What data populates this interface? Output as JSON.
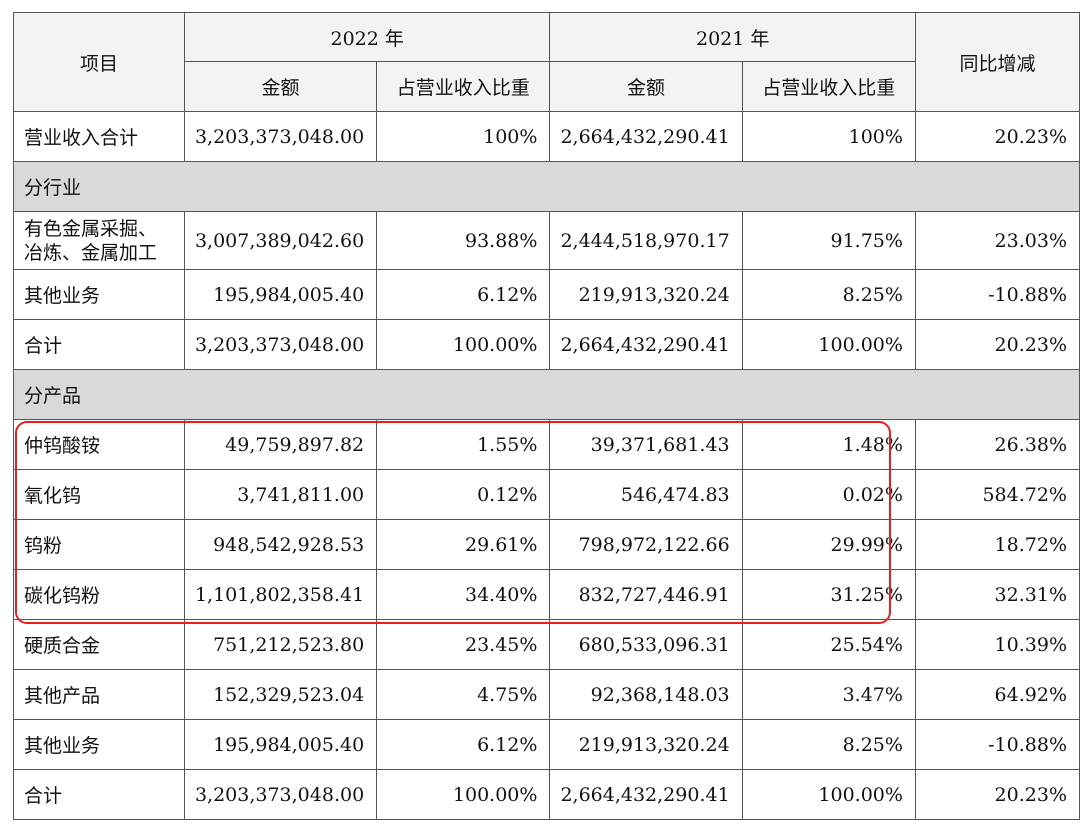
{
  "header": {
    "item": "项目",
    "year_2022": "2022 年",
    "year_2021": "2021 年",
    "yoy": "同比增减",
    "amount": "金额",
    "share": "占营业收入比重"
  },
  "total_row": {
    "label": "营业收入合计",
    "amt22": "3,203,373,048.00",
    "pct22": "100%",
    "amt21": "2,664,432,290.41",
    "pct21": "100%",
    "yoy": "20.23%"
  },
  "section_industry": "分行业",
  "industry_rows": [
    {
      "label": "有色金属采掘、冶炼、金属加工",
      "amt22": "3,007,389,042.60",
      "pct22": "93.88%",
      "amt21": "2,444,518,970.17",
      "pct21": "91.75%",
      "yoy": "23.03%"
    },
    {
      "label": "其他业务",
      "amt22": "195,984,005.40",
      "pct22": "6.12%",
      "amt21": "219,913,320.24",
      "pct21": "8.25%",
      "yoy": "-10.88%"
    },
    {
      "label": "合计",
      "amt22": "3,203,373,048.00",
      "pct22": "100.00%",
      "amt21": "2,664,432,290.41",
      "pct21": "100.00%",
      "yoy": "20.23%"
    }
  ],
  "section_product": "分产品",
  "product_rows": [
    {
      "label": "仲钨酸铵",
      "amt22": "49,759,897.82",
      "pct22": "1.55%",
      "amt21": "39,371,681.43",
      "pct21": "1.48%",
      "yoy": "26.38%"
    },
    {
      "label": "氧化钨",
      "amt22": "3,741,811.00",
      "pct22": "0.12%",
      "amt21": "546,474.83",
      "pct21": "0.02%",
      "yoy": "584.72%"
    },
    {
      "label": "钨粉",
      "amt22": "948,542,928.53",
      "pct22": "29.61%",
      "amt21": "798,972,122.66",
      "pct21": "29.99%",
      "yoy": "18.72%"
    },
    {
      "label": "碳化钨粉",
      "amt22": "1,101,802,358.41",
      "pct22": "34.40%",
      "amt21": "832,727,446.91",
      "pct21": "31.25%",
      "yoy": "32.31%"
    },
    {
      "label": "硬质合金",
      "amt22": "751,212,523.80",
      "pct22": "23.45%",
      "amt21": "680,533,096.31",
      "pct21": "25.54%",
      "yoy": "10.39%"
    },
    {
      "label": "其他产品",
      "amt22": "152,329,523.04",
      "pct22": "4.75%",
      "amt21": "92,368,148.03",
      "pct21": "3.47%",
      "yoy": "64.92%"
    },
    {
      "label": "其他业务",
      "amt22": "195,984,005.40",
      "pct22": "6.12%",
      "amt21": "219,913,320.24",
      "pct21": "8.25%",
      "yoy": "-10.88%"
    },
    {
      "label": "合计",
      "amt22": "3,203,373,048.00",
      "pct22": "100.00%",
      "amt21": "2,664,432,290.41",
      "pct21": "100.00%",
      "yoy": "20.23%"
    }
  ],
  "highlight_color": "#e8201b"
}
